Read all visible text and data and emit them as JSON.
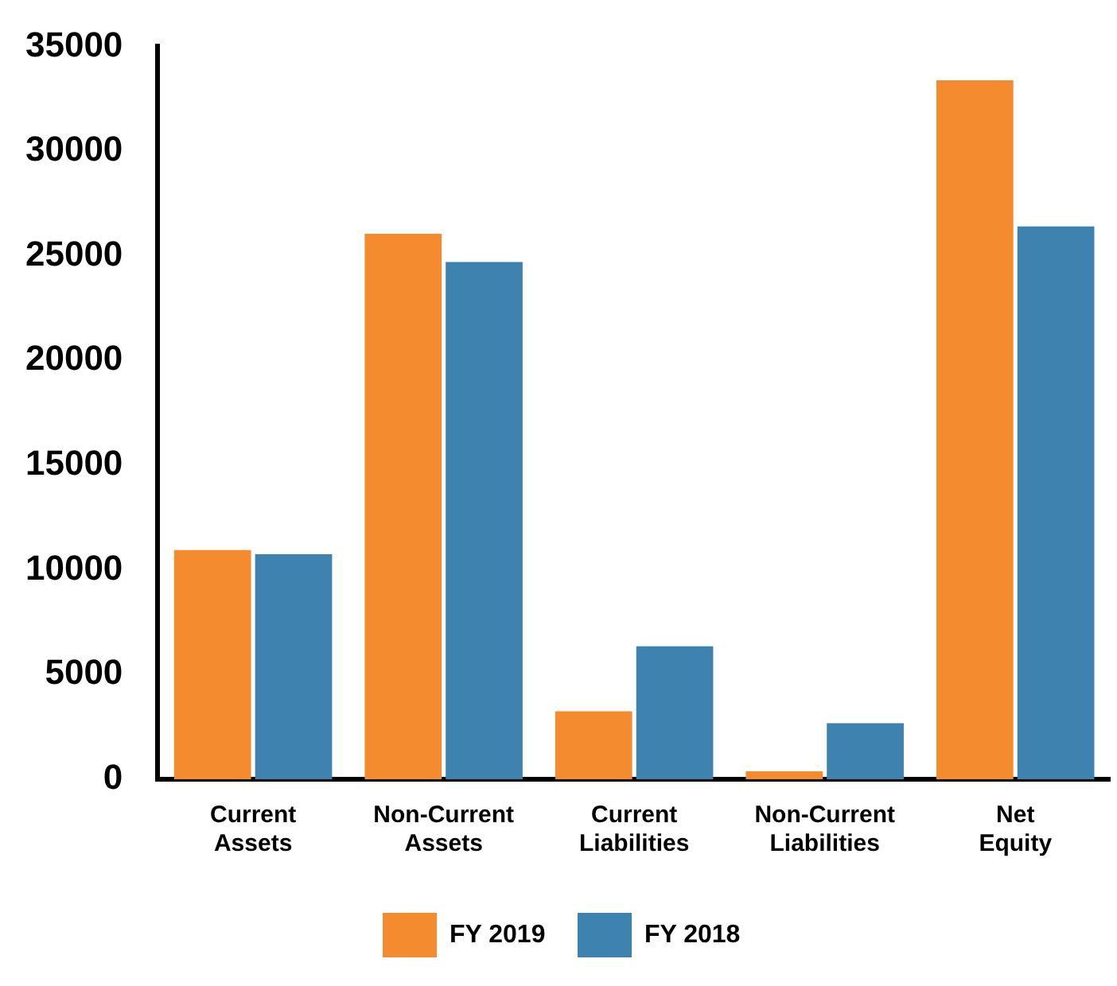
{
  "chart_data": {
    "type": "bar",
    "categories": [
      "Current\nAssets",
      "Non-Current\nAssets",
      "Current\nLiabilities",
      "Non-Current\nLiabilities",
      "Net\nEquity"
    ],
    "series": [
      {
        "name": "FY 2019",
        "color": "#f58b2f",
        "values": [
          10950,
          26050,
          3250,
          380,
          33380
        ]
      },
      {
        "name": "FY 2018",
        "color": "#3e83b0",
        "values": [
          10750,
          24700,
          6350,
          2680,
          26400
        ]
      }
    ],
    "ylim": [
      0,
      35000
    ],
    "yticks": [
      0,
      5000,
      10000,
      15000,
      20000,
      25000,
      30000,
      35000
    ],
    "grid": false,
    "legend": "bottom"
  }
}
